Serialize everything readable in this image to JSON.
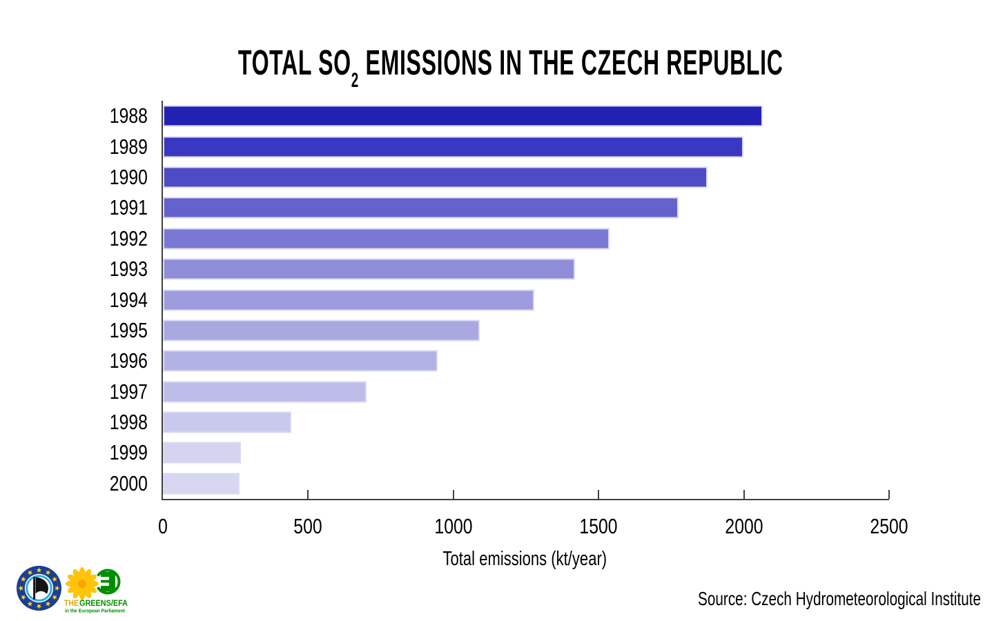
{
  "page": {
    "background": "#ffffff"
  },
  "title": {
    "part1": "TOTAL SO",
    "subscript": "2",
    "part2": " EMISSIONS IN THE CZECH REPUBLIC"
  },
  "chart_data": {
    "type": "bar",
    "orientation": "horizontal",
    "title": "Total SO2 emissions in the Czech Republic",
    "categories": [
      "1988",
      "1989",
      "1990",
      "1991",
      "1992",
      "1993",
      "1994",
      "1995",
      "1996",
      "1997",
      "1998",
      "1999",
      "2000"
    ],
    "values": [
      2066,
      1998,
      1876,
      1776,
      1538,
      1419,
      1278,
      1091,
      946,
      701,
      443,
      269,
      264
    ],
    "xlabel": "Total emissions (kt/year)",
    "xlim": [
      0,
      2500
    ],
    "xticks": [
      0,
      500,
      1000,
      1500,
      2000,
      2500
    ],
    "bar_colors": [
      "#2321b4",
      "#3a38c0",
      "#4d4bc6",
      "#6462cc",
      "#7a78d2",
      "#908ed9",
      "#9e9cdd",
      "#a9a8e1",
      "#b3b2e5",
      "#bebce9",
      "#c9c8ed",
      "#d4d3f0",
      "#d8d7f1"
    ],
    "bar_edge_color": "#dadaf5",
    "axis_color": "#3f3f3f",
    "grid": false,
    "legend": null
  },
  "footer": {
    "source": "Source: Czech Hydrometeorological Institute",
    "logos": {
      "pirate": {
        "label": "European Pirate Party"
      },
      "greens": {
        "the": "THE",
        "greens": "GREENS/EFA",
        "subtitle": "in the European Parliament"
      }
    }
  },
  "colors": {
    "pirate_blue": "#1b3f91",
    "pirate_star_yellow": "#ffd21c",
    "pirate_cyan": "#2aabe4",
    "greens_green": "#008f00",
    "greens_yellow": "#ffc40a",
    "greens_the_gold": "#dfa900"
  }
}
